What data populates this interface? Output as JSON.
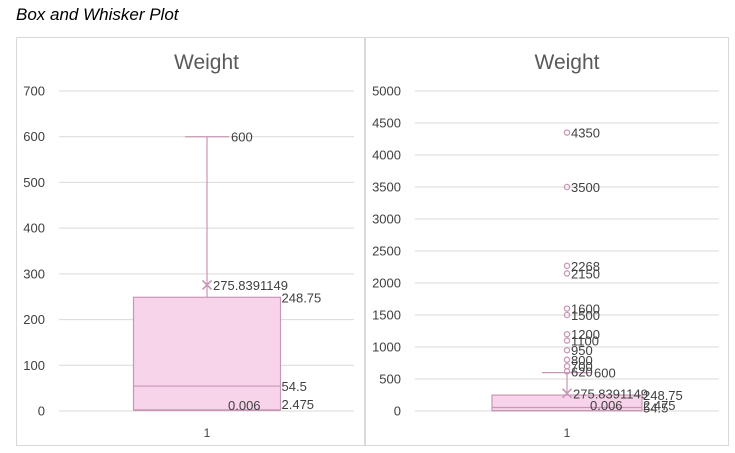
{
  "page": {
    "title": "Box and Whisker Plot"
  },
  "colors": {
    "box_fill": "#f8d4ea",
    "box_stroke": "#c897b5",
    "grid": "#d9d9d9",
    "text": "#404040"
  },
  "chart_data": [
    {
      "type": "box",
      "title": "Weight",
      "categories": [
        "1"
      ],
      "ylim": [
        0,
        700
      ],
      "yticks": [
        0,
        100,
        200,
        300,
        400,
        500,
        600,
        700
      ],
      "grid": true,
      "legend": "none",
      "stats": {
        "min": 0.006,
        "q1": 2.475,
        "median": 54.5,
        "q3": 248.75,
        "max": 600,
        "mean": 275.8391149
      },
      "outliers": [],
      "labels": {
        "min": "0.006",
        "q1": "2.475",
        "median": "54.5",
        "q3": "248.75",
        "max": "600",
        "mean": "275.8391149"
      }
    },
    {
      "type": "box",
      "title": "Weight",
      "categories": [
        "1"
      ],
      "ylim": [
        0,
        5000
      ],
      "yticks": [
        0,
        500,
        1000,
        1500,
        2000,
        2500,
        3000,
        3500,
        4000,
        4500,
        5000
      ],
      "grid": true,
      "legend": "none",
      "stats": {
        "min": 0.006,
        "q1": 2.475,
        "median": 54.5,
        "q3": 248.75,
        "max": 600,
        "mean": 275.8391149
      },
      "outliers": [
        4350,
        3500,
        2268,
        2150,
        1600,
        1500,
        1200,
        1100,
        950,
        800,
        700,
        620
      ],
      "labels": {
        "min": "0.006",
        "q1": "2.475",
        "median": "54.5",
        "q3": "248.75",
        "max": "600",
        "mean": "275.8391149"
      },
      "outlier_labels": [
        "4350",
        "3500",
        "2268",
        "2150",
        "1600",
        "1500",
        "1200",
        "1100",
        "950",
        "800",
        "700",
        "620"
      ]
    }
  ]
}
